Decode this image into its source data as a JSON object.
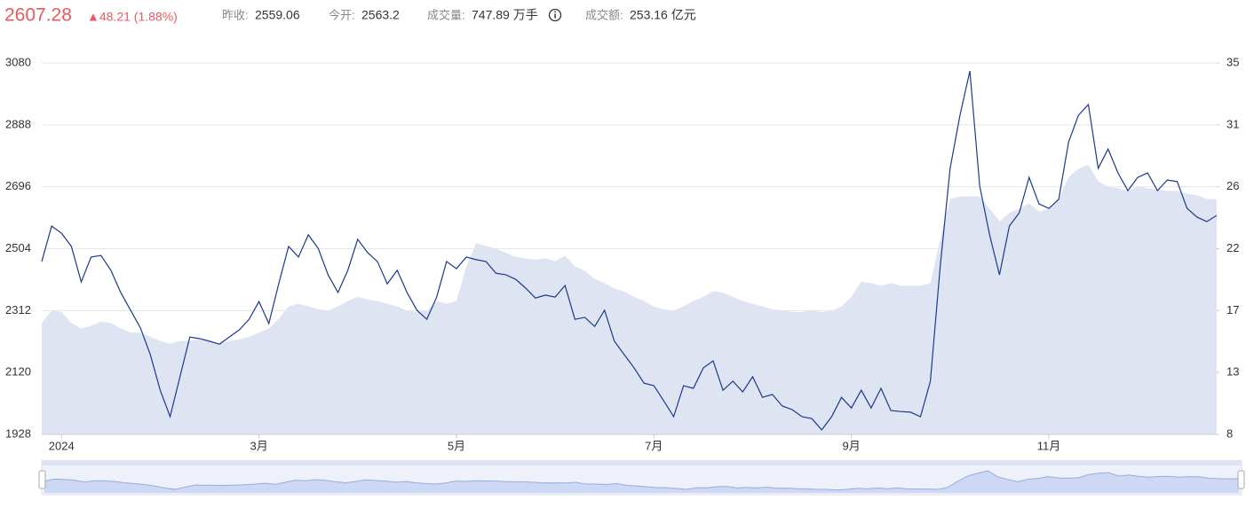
{
  "header": {
    "price": "2607.28",
    "change": "▲48.21 (1.88%)",
    "items": [
      {
        "label": "昨收:",
        "value": "2559.06"
      },
      {
        "label": "今开:",
        "value": "2563.2"
      },
      {
        "label": "成交量:",
        "value": "747.89 万手"
      },
      {
        "label": "成交额:",
        "value": "253.16 亿元"
      }
    ]
  },
  "chart_data": {
    "type": "line",
    "categories": [
      null,
      null,
      "2024",
      null,
      null,
      null,
      null,
      null,
      null,
      null,
      null,
      null,
      null,
      null,
      null,
      null,
      null,
      null,
      null,
      null,
      null,
      null,
      "3月",
      null,
      null,
      null,
      null,
      null,
      null,
      null,
      null,
      null,
      null,
      null,
      null,
      null,
      null,
      null,
      null,
      null,
      null,
      null,
      "5月",
      null,
      null,
      null,
      null,
      null,
      null,
      null,
      null,
      null,
      null,
      null,
      null,
      null,
      null,
      null,
      null,
      null,
      null,
      null,
      "7月",
      null,
      null,
      null,
      null,
      null,
      null,
      null,
      null,
      null,
      null,
      null,
      null,
      null,
      null,
      null,
      null,
      null,
      null,
      null,
      "9月",
      null,
      null,
      null,
      null,
      null,
      null,
      null,
      null,
      null,
      null,
      null,
      null,
      null,
      null,
      null,
      null,
      null,
      null,
      null,
      "11月",
      null,
      null,
      null,
      null,
      null,
      null,
      null,
      null,
      null,
      null,
      null,
      null,
      null,
      null,
      null,
      null,
      null
    ],
    "series": [
      {
        "type": "line",
        "color": "#1a3a8c",
        "values": [
          2464,
          2574,
          2552,
          2511,
          2401,
          2478,
          2483,
          2437,
          2368,
          2313,
          2258,
          2175,
          2065,
          1983,
          2107,
          2230,
          2225,
          2217,
          2208,
          2230,
          2252,
          2285,
          2340,
          2272,
          2395,
          2511,
          2478,
          2547,
          2505,
          2423,
          2368,
          2437,
          2533,
          2492,
          2464,
          2395,
          2437,
          2368,
          2313,
          2285,
          2354,
          2464,
          2442,
          2478,
          2470,
          2464,
          2428,
          2423,
          2409,
          2382,
          2351,
          2360,
          2354,
          2390,
          2285,
          2291,
          2263,
          2313,
          2217,
          2175,
          2134,
          2087,
          2079,
          2032,
          1983,
          2079,
          2071,
          2134,
          2156,
          2065,
          2093,
          2060,
          2107,
          2043,
          2052,
          2016,
          2005,
          1983,
          1977,
          1942,
          1983,
          2043,
          2010,
          2065,
          2010,
          2071,
          2002,
          1999,
          1997,
          1983,
          2093,
          2450,
          2753,
          2918,
          3055,
          2698,
          2547,
          2423,
          2574,
          2615,
          2725,
          2643,
          2629,
          2657,
          2835,
          2918,
          2951,
          2753,
          2813,
          2739,
          2684,
          2725,
          2739,
          2684,
          2717,
          2712,
          2629,
          2602,
          2588,
          2607
        ]
      },
      {
        "type": "area",
        "axis": "y2",
        "color": "#dfe4f3",
        "values": [
          16.1,
          17.0,
          16.9,
          16.1,
          15.7,
          15.9,
          16.2,
          16.1,
          15.7,
          15.4,
          15.4,
          15.1,
          14.8,
          14.6,
          14.8,
          14.8,
          14.9,
          14.8,
          14.6,
          14.8,
          14.9,
          15.1,
          15.4,
          15.7,
          16.4,
          17.3,
          17.5,
          17.3,
          17.1,
          17.0,
          17.3,
          17.7,
          18.0,
          17.8,
          17.7,
          17.5,
          17.3,
          17.0,
          16.9,
          17.0,
          17.7,
          17.5,
          17.7,
          20.2,
          21.9,
          21.7,
          21.5,
          21.2,
          20.9,
          20.8,
          20.7,
          20.8,
          20.6,
          21.0,
          20.2,
          19.9,
          19.3,
          19.0,
          18.6,
          18.4,
          18.0,
          17.7,
          17.3,
          17.1,
          17.0,
          17.3,
          17.7,
          18.0,
          18.4,
          18.3,
          18.0,
          17.7,
          17.5,
          17.3,
          17.1,
          17.0,
          16.9,
          16.9,
          17.0,
          16.9,
          17.0,
          17.3,
          18.0,
          19.1,
          19.0,
          18.8,
          19.0,
          18.8,
          18.8,
          18.8,
          19.0,
          22.2,
          25.1,
          25.3,
          25.3,
          25.3,
          24.4,
          23.5,
          24.1,
          24.4,
          24.8,
          24.2,
          24.4,
          25.1,
          26.7,
          27.3,
          27.6,
          26.4,
          26.0,
          25.9,
          25.7,
          26.0,
          25.9,
          25.8,
          25.7,
          25.7,
          25.5,
          25.4,
          25.1,
          25.1
        ]
      }
    ],
    "ylim": [
      1928,
      3080
    ],
    "yticks": [
      1928,
      2120,
      2312,
      2504,
      2696,
      2888,
      3080
    ],
    "y2lim": [
      8,
      35
    ],
    "y2ticks": [
      8,
      {
        "value": 12.5,
        "label": "13"
      },
      17,
      {
        "value": 21.5,
        "label": "22"
      },
      26,
      {
        "value": 30.5,
        "label": "31"
      },
      35
    ],
    "grid": true
  }
}
